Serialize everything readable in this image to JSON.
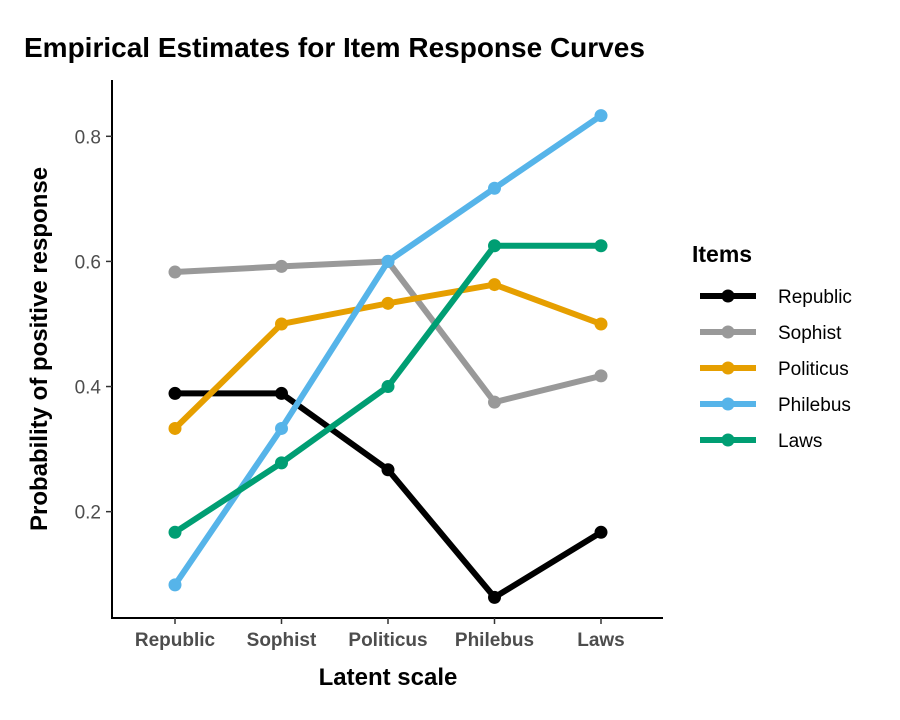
{
  "chart_data": {
    "type": "line",
    "title": "Empirical Estimates for Item Response Curves",
    "xlabel": "Latent scale",
    "ylabel": "Probability of positive response",
    "categories": [
      "Republic",
      "Sophist",
      "Politicus",
      "Philebus",
      "Laws"
    ],
    "ylim": [
      0.03,
      0.89
    ],
    "yticks": [
      0.2,
      0.4,
      0.6,
      0.8
    ],
    "grid": false,
    "legend": {
      "title": "Items",
      "position": "right"
    },
    "series": [
      {
        "name": "Republic",
        "color": "#000000",
        "values": [
          0.389,
          0.389,
          0.267,
          0.063,
          0.167
        ]
      },
      {
        "name": "Sophist",
        "color": "#999999",
        "values": [
          0.583,
          0.592,
          0.6,
          0.375,
          0.417
        ]
      },
      {
        "name": "Politicus",
        "color": "#E69F00",
        "values": [
          0.333,
          0.5,
          0.533,
          0.563,
          0.5
        ]
      },
      {
        "name": "Philebus",
        "color": "#56B4E9",
        "values": [
          0.083,
          0.333,
          0.6,
          0.717,
          0.833
        ]
      },
      {
        "name": "Laws",
        "color": "#009E73",
        "values": [
          0.167,
          0.278,
          0.4,
          0.625,
          0.625
        ]
      }
    ]
  }
}
